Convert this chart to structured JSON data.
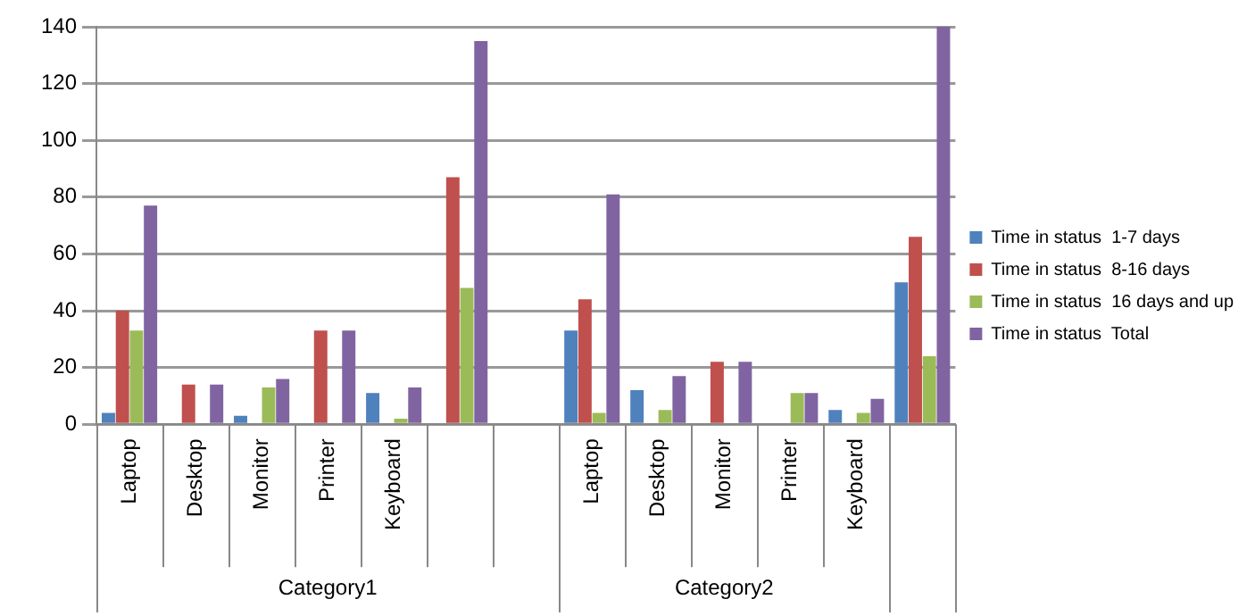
{
  "chart_data": {
    "type": "bar",
    "categories": [
      "Laptop",
      "Desktop",
      "Monitor",
      "Printer",
      "Keyboard",
      null,
      null,
      "Laptop",
      "Desktop",
      "Monitor",
      "Printer",
      "Keyboard",
      null
    ],
    "series": [
      {
        "name": "Time in status  1-7 days",
        "color": "#4f81bd",
        "values": [
          4,
          0,
          3,
          0,
          11,
          0,
          0,
          33,
          12,
          0,
          0,
          5,
          50
        ]
      },
      {
        "name": "Time in status  8-16 days",
        "color": "#c0504d",
        "values": [
          40,
          14,
          0,
          33,
          0,
          87,
          0,
          44,
          0,
          22,
          0,
          0,
          66
        ]
      },
      {
        "name": "Time in status  16 days and up",
        "color": "#9bbb59",
        "values": [
          33,
          0,
          13,
          0,
          2,
          48,
          0,
          4,
          5,
          0,
          11,
          4,
          24
        ]
      },
      {
        "name": "Time in status  Total",
        "color": "#8064a2",
        "values": [
          77,
          14,
          16,
          33,
          13,
          135,
          0,
          81,
          17,
          22,
          11,
          9,
          140
        ]
      }
    ],
    "annotations": [
      "Category1",
      "Category2"
    ],
    "ylim": [
      0,
      140
    ],
    "yticks": [
      0,
      20,
      40,
      60,
      80,
      100,
      120,
      140
    ],
    "grid": "y",
    "legend": "right"
  }
}
